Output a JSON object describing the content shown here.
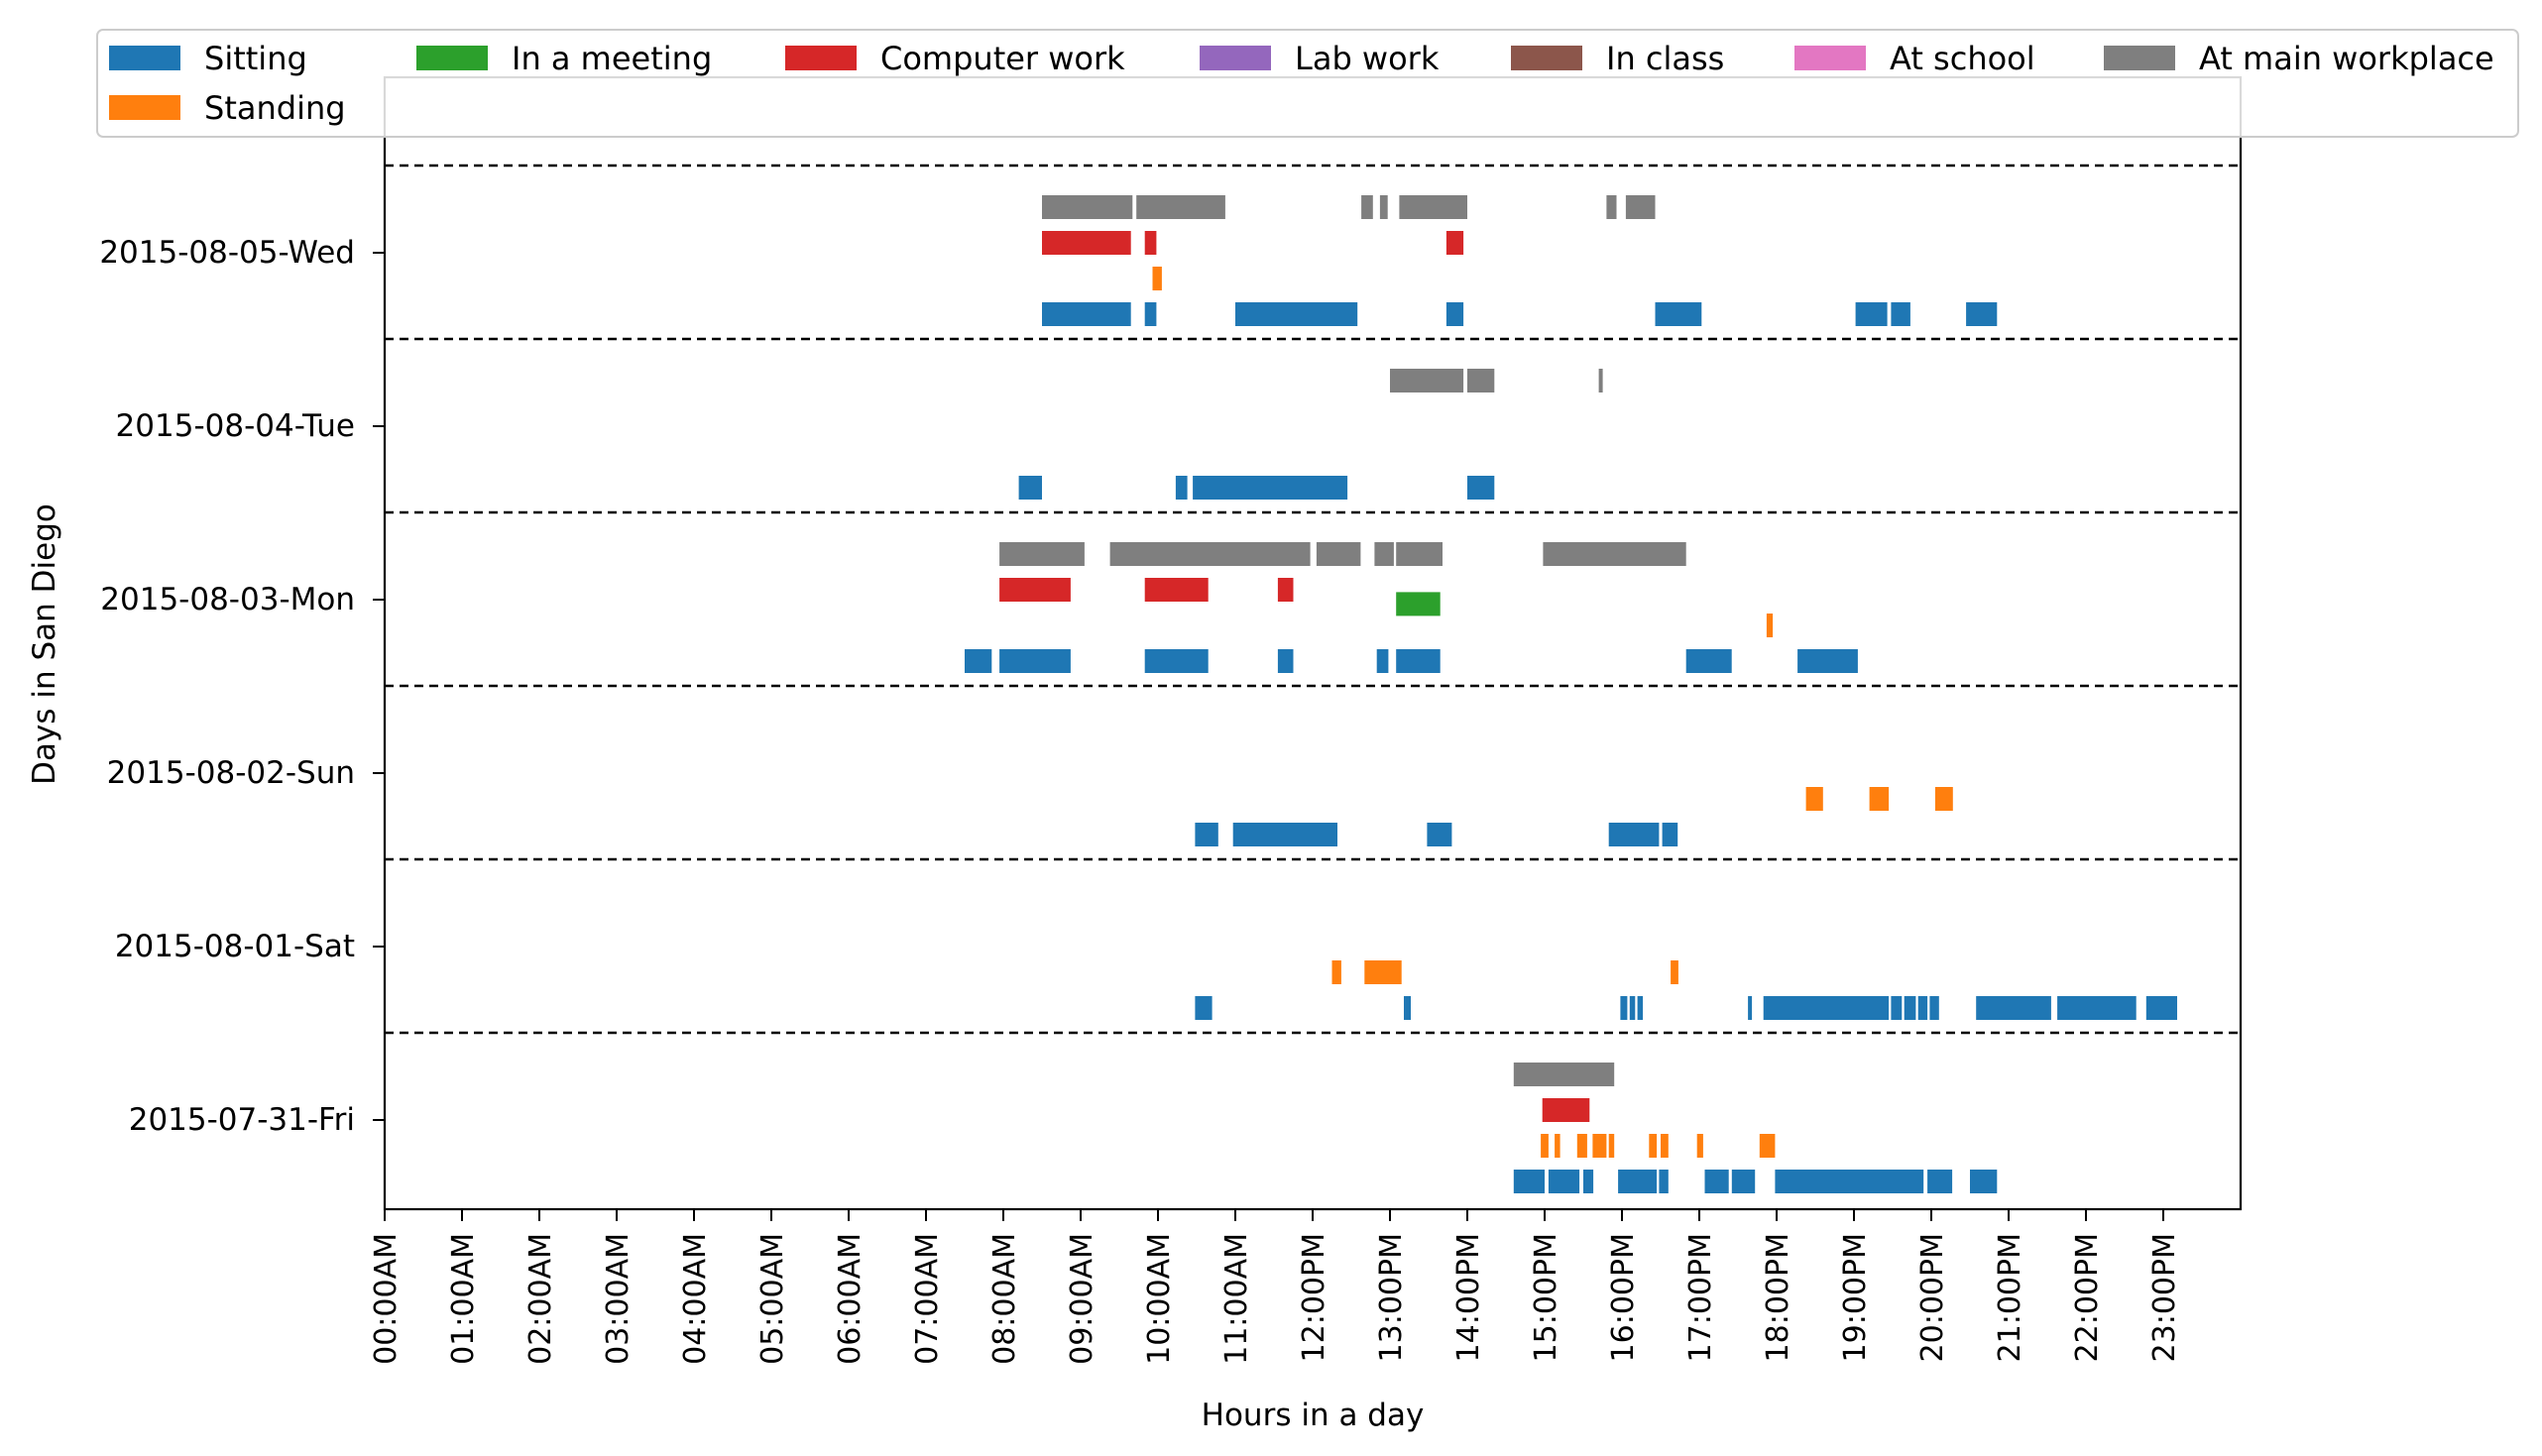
{
  "chart_data": {
    "type": "timeline",
    "xlabel": "Hours in a day",
    "ylabel": "Days in San Diego",
    "xlim": [
      0,
      24
    ],
    "x_ticks": [
      {
        "value": 0,
        "label": "00:00AM"
      },
      {
        "value": 1,
        "label": "01:00AM"
      },
      {
        "value": 2,
        "label": "02:00AM"
      },
      {
        "value": 3,
        "label": "03:00AM"
      },
      {
        "value": 4,
        "label": "04:00AM"
      },
      {
        "value": 5,
        "label": "05:00AM"
      },
      {
        "value": 6,
        "label": "06:00AM"
      },
      {
        "value": 7,
        "label": "07:00AM"
      },
      {
        "value": 8,
        "label": "08:00AM"
      },
      {
        "value": 9,
        "label": "09:00AM"
      },
      {
        "value": 10,
        "label": "10:00AM"
      },
      {
        "value": 11,
        "label": "11:00AM"
      },
      {
        "value": 12,
        "label": "12:00PM"
      },
      {
        "value": 13,
        "label": "13:00PM"
      },
      {
        "value": 14,
        "label": "14:00PM"
      },
      {
        "value": 15,
        "label": "15:00PM"
      },
      {
        "value": 16,
        "label": "16:00PM"
      },
      {
        "value": 17,
        "label": "17:00PM"
      },
      {
        "value": 18,
        "label": "18:00PM"
      },
      {
        "value": 19,
        "label": "19:00PM"
      },
      {
        "value": 20,
        "label": "20:00PM"
      },
      {
        "value": 21,
        "label": "21:00PM"
      },
      {
        "value": 22,
        "label": "22:00PM"
      },
      {
        "value": 23,
        "label": "23:00PM"
      }
    ],
    "days": [
      "2015-08-05-Wed",
      "2015-08-04-Tue",
      "2015-08-03-Mon",
      "2015-08-02-Sun",
      "2015-08-01-Sat",
      "2015-07-31-Fri"
    ],
    "legend": {
      "placement": "top",
      "entries": [
        {
          "name": "Sitting",
          "color": "#1f77b4"
        },
        {
          "name": "In a meeting",
          "color": "#2ca02c"
        },
        {
          "name": "Computer work",
          "color": "#d62728"
        },
        {
          "name": "Lab work",
          "color": "#9467bd"
        },
        {
          "name": "In class",
          "color": "#8c564b"
        },
        {
          "name": "At school",
          "color": "#e377c2"
        },
        {
          "name": "At main workplace",
          "color": "#7f7f7f"
        },
        {
          "name": "Standing",
          "color": "#ff7f0e"
        }
      ]
    },
    "day_separators": "dashed",
    "grid": false,
    "rows": [
      {
        "day": "2015-08-05-Wed",
        "tracks": [
          {
            "level": 0,
            "activity": "Sitting",
            "color": "#1f77b4",
            "intervals": [
              [
                8.5,
                9.65
              ],
              [
                9.83,
                9.98
              ],
              [
                11.0,
                12.58
              ],
              [
                13.73,
                13.95
              ],
              [
                16.43,
                17.03
              ],
              [
                19.02,
                19.43
              ],
              [
                19.48,
                19.73
              ],
              [
                20.45,
                20.85
              ]
            ]
          },
          {
            "level": 1,
            "activity": "Standing",
            "color": "#ff7f0e",
            "intervals": [
              [
                9.93,
                10.05
              ]
            ]
          },
          {
            "level": 2,
            "activity": "Computer work",
            "color": "#d62728",
            "intervals": [
              [
                8.5,
                9.65
              ],
              [
                9.83,
                9.98
              ],
              [
                13.73,
                13.95
              ]
            ]
          },
          {
            "level": 3,
            "activity": "At main workplace",
            "color": "#7f7f7f",
            "intervals": [
              [
                8.5,
                9.67
              ],
              [
                9.72,
                10.87
              ],
              [
                12.63,
                12.78
              ],
              [
                12.87,
                12.97
              ],
              [
                13.12,
                14.0
              ],
              [
                15.8,
                15.93
              ],
              [
                16.05,
                16.43
              ]
            ]
          }
        ]
      },
      {
        "day": "2015-08-04-Tue",
        "tracks": [
          {
            "level": 0,
            "activity": "Sitting",
            "color": "#1f77b4",
            "intervals": [
              [
                8.2,
                8.5
              ],
              [
                10.23,
                10.38
              ],
              [
                10.45,
                12.45
              ],
              [
                14.0,
                14.35
              ]
            ]
          },
          {
            "level": 3,
            "activity": "At main workplace",
            "color": "#7f7f7f",
            "intervals": [
              [
                13.0,
                13.95
              ],
              [
                14.0,
                14.35
              ],
              [
                15.7,
                15.75
              ]
            ]
          }
        ]
      },
      {
        "day": "2015-08-03-Mon",
        "tracks": [
          {
            "level": 0,
            "activity": "Sitting",
            "color": "#1f77b4",
            "intervals": [
              [
                7.5,
                7.85
              ],
              [
                7.95,
                8.87
              ],
              [
                9.83,
                10.65
              ],
              [
                11.55,
                11.75
              ],
              [
                12.83,
                12.98
              ],
              [
                13.08,
                13.65
              ],
              [
                16.83,
                17.42
              ],
              [
                18.27,
                19.05
              ]
            ]
          },
          {
            "level": 1,
            "activity": "Standing",
            "color": "#ff7f0e",
            "intervals": [
              [
                17.87,
                17.95
              ]
            ]
          },
          {
            "level": 1.6,
            "activity": "In a meeting",
            "color": "#2ca02c",
            "intervals": [
              [
                13.08,
                13.65
              ]
            ]
          },
          {
            "level": 2,
            "activity": "Computer work",
            "color": "#d62728",
            "intervals": [
              [
                7.95,
                8.87
              ],
              [
                9.83,
                10.65
              ],
              [
                11.55,
                11.75
              ]
            ]
          },
          {
            "level": 3,
            "activity": "At main workplace",
            "color": "#7f7f7f",
            "intervals": [
              [
                7.95,
                9.05
              ],
              [
                9.38,
                11.97
              ],
              [
                12.05,
                12.62
              ],
              [
                12.8,
                13.05
              ],
              [
                13.08,
                13.68
              ],
              [
                14.98,
                16.83
              ]
            ]
          }
        ]
      },
      {
        "day": "2015-08-02-Sun",
        "tracks": [
          {
            "level": 0,
            "activity": "Sitting",
            "color": "#1f77b4",
            "intervals": [
              [
                10.48,
                10.78
              ],
              [
                10.97,
                12.32
              ],
              [
                13.48,
                13.8
              ],
              [
                15.83,
                16.48
              ],
              [
                16.52,
                16.72
              ]
            ]
          },
          {
            "level": 1,
            "activity": "Standing",
            "color": "#ff7f0e",
            "intervals": [
              [
                18.38,
                18.6
              ],
              [
                19.2,
                19.45
              ],
              [
                20.05,
                20.28
              ]
            ]
          }
        ]
      },
      {
        "day": "2015-08-01-Sat",
        "tracks": [
          {
            "level": 0,
            "activity": "Sitting",
            "color": "#1f77b4",
            "intervals": [
              [
                10.48,
                10.7
              ],
              [
                13.18,
                13.27
              ],
              [
                15.98,
                16.07
              ],
              [
                16.1,
                16.17
              ],
              [
                16.2,
                16.27
              ],
              [
                17.63,
                17.68
              ],
              [
                17.83,
                19.45
              ],
              [
                19.48,
                19.62
              ],
              [
                19.65,
                19.8
              ],
              [
                19.83,
                19.95
              ],
              [
                19.98,
                20.1
              ],
              [
                20.58,
                21.55
              ],
              [
                21.63,
                22.65
              ],
              [
                22.78,
                23.18
              ]
            ]
          },
          {
            "level": 1,
            "activity": "Standing",
            "color": "#ff7f0e",
            "intervals": [
              [
                12.25,
                12.37
              ],
              [
                12.67,
                13.15
              ],
              [
                16.63,
                16.73
              ]
            ]
          }
        ]
      },
      {
        "day": "2015-07-31-Fri",
        "tracks": [
          {
            "level": 0,
            "activity": "Sitting",
            "color": "#1f77b4",
            "intervals": [
              [
                14.6,
                15.0
              ],
              [
                15.05,
                15.45
              ],
              [
                15.5,
                15.63
              ],
              [
                15.95,
                16.45
              ],
              [
                16.48,
                16.6
              ],
              [
                17.07,
                17.38
              ],
              [
                17.42,
                17.72
              ],
              [
                17.98,
                19.9
              ],
              [
                19.95,
                20.27
              ],
              [
                20.5,
                20.85
              ]
            ]
          },
          {
            "level": 1,
            "activity": "Standing",
            "color": "#ff7f0e",
            "intervals": [
              [
                14.95,
                15.05
              ],
              [
                15.13,
                15.2
              ],
              [
                15.42,
                15.55
              ],
              [
                15.62,
                15.8
              ],
              [
                15.83,
                15.9
              ],
              [
                16.35,
                16.45
              ],
              [
                16.5,
                16.6
              ],
              [
                16.97,
                17.05
              ],
              [
                17.78,
                17.98
              ]
            ]
          },
          {
            "level": 2,
            "activity": "Computer work",
            "color": "#d62728",
            "intervals": [
              [
                14.97,
                15.58
              ]
            ]
          },
          {
            "level": 3,
            "activity": "At main workplace",
            "color": "#7f7f7f",
            "intervals": [
              [
                14.6,
                15.9
              ]
            ]
          }
        ]
      }
    ]
  }
}
